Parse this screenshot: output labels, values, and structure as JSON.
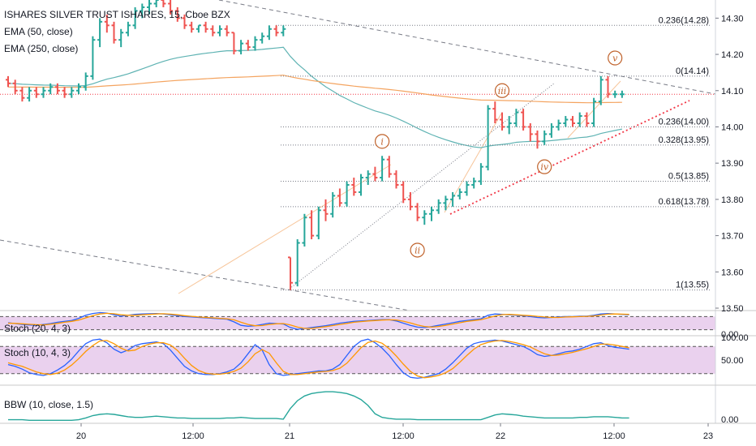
{
  "legend": {
    "symbol": "ISHARES SILVER TRUST ISHARES, 15, Cboe BZX",
    "ema50": "EMA (50, close)",
    "ema250": "EMA (250, close)",
    "stoch1": "Stoch (20, 4, 3)",
    "stoch2": "Stoch (10, 4, 3)",
    "bbw": "BBW (10, close, 1.5)"
  },
  "colors": {
    "bull": "#26a69a",
    "bear": "#ef5350",
    "ema50": "#5fb3b3",
    "ema250": "#f4a460",
    "stoch_k": "#2962ff",
    "stoch_d": "#ff9800",
    "stoch_bg": "#e1bee7",
    "bbw": "#26a69a",
    "wave": "#c0622b",
    "fib": "#787b86",
    "price_line": "#f23645",
    "trend": "#787b86"
  },
  "chart_data": [
    {
      "type": "line",
      "panel": "price",
      "price_axis_ticks": [
        "14.30",
        "14.20",
        "14.10",
        "14.00",
        "13.90",
        "13.80",
        "13.70",
        "13.60",
        "13.50"
      ],
      "ylim": [
        13.5,
        14.35
      ],
      "time_axis_labels": [
        "20",
        "12:00",
        "21",
        "12:00",
        "22",
        "12:00",
        "23"
      ],
      "current_price_line": 14.09,
      "fib_levels": [
        {
          "label": "0.236(14.28)",
          "value": 14.28
        },
        {
          "label": "0(14.14)",
          "value": 14.14
        },
        {
          "label": "0.236(14.00)",
          "value": 14.0
        },
        {
          "label": "0.328(13.95)",
          "value": 13.95
        },
        {
          "label": "0.5(13.85)",
          "value": 13.85
        },
        {
          "label": "0.618(13.78)",
          "value": 13.78
        },
        {
          "label": "1(13.55)",
          "value": 13.55
        }
      ],
      "wave_labels": [
        {
          "label": "i",
          "price": 13.96
        },
        {
          "label": "ii",
          "price": 13.66
        },
        {
          "label": "iii",
          "price": 14.1
        },
        {
          "label": "iv",
          "price": 13.89
        },
        {
          "label": "v",
          "price": 14.19
        }
      ],
      "ohlc": [
        [
          14.13,
          14.14,
          14.11,
          14.12
        ],
        [
          14.12,
          14.13,
          14.09,
          14.1
        ],
        [
          14.1,
          14.11,
          14.07,
          14.08
        ],
        [
          14.08,
          14.11,
          14.07,
          14.1
        ],
        [
          14.1,
          14.11,
          14.08,
          14.09
        ],
        [
          14.09,
          14.11,
          14.08,
          14.1
        ],
        [
          14.1,
          14.12,
          14.09,
          14.11
        ],
        [
          14.11,
          14.12,
          14.09,
          14.1
        ],
        [
          14.1,
          14.11,
          14.08,
          14.09
        ],
        [
          14.09,
          14.11,
          14.08,
          14.1
        ],
        [
          14.1,
          14.12,
          14.09,
          14.11
        ],
        [
          14.11,
          14.15,
          14.1,
          14.14
        ],
        [
          14.14,
          14.25,
          14.13,
          14.24
        ],
        [
          14.24,
          14.3,
          14.22,
          14.29
        ],
        [
          14.29,
          14.31,
          14.26,
          14.28
        ],
        [
          14.28,
          14.29,
          14.23,
          14.24
        ],
        [
          14.24,
          14.27,
          14.22,
          14.26
        ],
        [
          14.26,
          14.29,
          14.25,
          14.28
        ],
        [
          14.28,
          14.33,
          14.27,
          14.32
        ],
        [
          14.32,
          14.34,
          14.3,
          14.33
        ],
        [
          14.33,
          14.35,
          14.31,
          14.34
        ],
        [
          14.34,
          14.36,
          14.33,
          14.35
        ],
        [
          14.35,
          14.36,
          14.33,
          14.34
        ],
        [
          14.34,
          14.35,
          14.31,
          14.32
        ],
        [
          14.32,
          14.33,
          14.29,
          14.3
        ],
        [
          14.3,
          14.31,
          14.27,
          14.28
        ],
        [
          14.28,
          14.29,
          14.26,
          14.27
        ],
        [
          14.27,
          14.28,
          14.26,
          14.28
        ],
        [
          14.28,
          14.29,
          14.26,
          14.27
        ],
        [
          14.27,
          14.28,
          14.25,
          14.26
        ],
        [
          14.26,
          14.28,
          14.25,
          14.27
        ],
        [
          14.27,
          14.28,
          14.25,
          14.26
        ],
        [
          14.26,
          14.26,
          14.2,
          14.21
        ],
        [
          14.21,
          14.24,
          14.2,
          14.23
        ],
        [
          14.23,
          14.24,
          14.21,
          14.22
        ],
        [
          14.22,
          14.25,
          14.21,
          14.24
        ],
        [
          14.24,
          14.26,
          14.23,
          14.25
        ],
        [
          14.25,
          14.28,
          14.24,
          14.27
        ],
        [
          14.27,
          14.28,
          14.25,
          14.26
        ],
        [
          14.26,
          14.28,
          14.25,
          14.27
        ],
        [
          13.64,
          13.64,
          13.55,
          13.57
        ],
        [
          13.57,
          13.69,
          13.56,
          13.68
        ],
        [
          13.68,
          13.76,
          13.67,
          13.75
        ],
        [
          13.75,
          13.77,
          13.69,
          13.7
        ],
        [
          13.7,
          13.78,
          13.69,
          13.77
        ],
        [
          13.77,
          13.8,
          13.74,
          13.76
        ],
        [
          13.76,
          13.82,
          13.75,
          13.81
        ],
        [
          13.81,
          13.83,
          13.78,
          13.79
        ],
        [
          13.79,
          13.85,
          13.78,
          13.84
        ],
        [
          13.84,
          13.86,
          13.81,
          13.82
        ],
        [
          13.82,
          13.87,
          13.81,
          13.86
        ],
        [
          13.86,
          13.88,
          13.84,
          13.87
        ],
        [
          13.87,
          13.89,
          13.85,
          13.86
        ],
        [
          13.86,
          13.92,
          13.85,
          13.91
        ],
        [
          13.91,
          13.92,
          13.86,
          13.87
        ],
        [
          13.87,
          13.88,
          13.83,
          13.84
        ],
        [
          13.84,
          13.85,
          13.79,
          13.8
        ],
        [
          13.8,
          13.82,
          13.77,
          13.78
        ],
        [
          13.78,
          13.79,
          13.74,
          13.75
        ],
        [
          13.75,
          13.77,
          13.73,
          13.76
        ],
        [
          13.76,
          13.78,
          13.74,
          13.77
        ],
        [
          13.77,
          13.8,
          13.76,
          13.79
        ],
        [
          13.79,
          13.81,
          13.77,
          13.8
        ],
        [
          13.8,
          13.82,
          13.78,
          13.81
        ],
        [
          13.81,
          13.83,
          13.8,
          13.82
        ],
        [
          13.82,
          13.85,
          13.81,
          13.84
        ],
        [
          13.84,
          13.86,
          13.83,
          13.85
        ],
        [
          13.85,
          13.9,
          13.84,
          13.89
        ],
        [
          13.89,
          14.06,
          13.88,
          14.05
        ],
        [
          14.05,
          14.07,
          14.01,
          14.02
        ],
        [
          14.02,
          14.04,
          13.99,
          14.0
        ],
        [
          14.0,
          14.03,
          13.98,
          14.01
        ],
        [
          14.01,
          14.05,
          14.0,
          14.04
        ],
        [
          14.04,
          14.05,
          13.99,
          14.0
        ],
        [
          14.0,
          14.01,
          13.96,
          13.98
        ],
        [
          13.98,
          13.99,
          13.94,
          13.96
        ],
        [
          13.96,
          13.99,
          13.95,
          13.98
        ],
        [
          13.98,
          14.01,
          13.97,
          14.0
        ],
        [
          14.0,
          14.02,
          13.99,
          14.01
        ],
        [
          14.01,
          14.03,
          14.0,
          14.02
        ],
        [
          14.02,
          14.03,
          14.0,
          14.01
        ],
        [
          14.01,
          14.04,
          14.0,
          14.03
        ],
        [
          14.03,
          14.04,
          14.0,
          14.01
        ],
        [
          14.01,
          14.08,
          14.0,
          14.07
        ],
        [
          14.07,
          14.14,
          14.06,
          14.13
        ],
        [
          14.13,
          14.14,
          14.08,
          14.09
        ],
        [
          14.09,
          14.1,
          14.08,
          14.09
        ],
        [
          14.09,
          14.1,
          14.08,
          14.09
        ]
      ]
    },
    {
      "type": "line",
      "panel": "stoch_20_4_3",
      "axis_ticks": [
        "0.00"
      ],
      "ylim": [
        0,
        100
      ],
      "bands": [
        80,
        20
      ],
      "series": [
        {
          "name": "K",
          "values": [
            52,
            48,
            44,
            42,
            40,
            44,
            48,
            54,
            58,
            62,
            72,
            86,
            94,
            98,
            96,
            88,
            82,
            86,
            90,
            92,
            93,
            94,
            92,
            88,
            84,
            80,
            78,
            76,
            74,
            72,
            70,
            68,
            56,
            40,
            36,
            38,
            44,
            50,
            48,
            46,
            30,
            22,
            26,
            30,
            34,
            38,
            44,
            50,
            54,
            58,
            60,
            62,
            64,
            66,
            66,
            60,
            50,
            40,
            32,
            30,
            34,
            40,
            46,
            52,
            58,
            62,
            66,
            70,
            86,
            92,
            90,
            88,
            86,
            84,
            80,
            76,
            74,
            76,
            78,
            80,
            80,
            82,
            82,
            86,
            92,
            94,
            92,
            90,
            88
          ]
        },
        {
          "name": "D",
          "values": [
            50,
            49,
            47,
            45,
            43,
            42,
            45,
            49,
            54,
            58,
            64,
            74,
            84,
            92,
            95,
            93,
            88,
            86,
            86,
            88,
            90,
            92,
            93,
            91,
            88,
            84,
            81,
            78,
            76,
            74,
            72,
            70,
            65,
            54,
            44,
            38,
            39,
            44,
            47,
            48,
            42,
            32,
            26,
            26,
            30,
            34,
            39,
            44,
            49,
            54,
            57,
            60,
            62,
            64,
            65,
            64,
            59,
            51,
            42,
            35,
            32,
            35,
            40,
            46,
            52,
            58,
            62,
            66,
            74,
            83,
            89,
            90,
            88,
            86,
            84,
            81,
            78,
            76,
            76,
            78,
            79,
            80,
            81,
            83,
            87,
            91,
            92,
            91,
            90
          ]
        }
      ]
    },
    {
      "type": "line",
      "panel": "stoch_10_4_3",
      "axis_ticks": [
        "100.00",
        "50.00"
      ],
      "ylim": [
        0,
        100
      ],
      "bands": [
        80,
        20
      ],
      "series": [
        {
          "name": "K",
          "values": [
            40,
            36,
            30,
            22,
            18,
            16,
            20,
            28,
            38,
            52,
            70,
            86,
            94,
            96,
            88,
            74,
            66,
            72,
            82,
            86,
            88,
            90,
            86,
            72,
            54,
            36,
            26,
            20,
            18,
            18,
            20,
            24,
            30,
            44,
            64,
            84,
            72,
            40,
            20,
            16,
            18,
            20,
            22,
            24,
            26,
            26,
            30,
            40,
            60,
            80,
            92,
            96,
            88,
            76,
            60,
            40,
            22,
            12,
            10,
            12,
            16,
            20,
            30,
            44,
            60,
            76,
            86,
            90,
            92,
            94,
            92,
            88,
            84,
            80,
            72,
            62,
            58,
            60,
            64,
            68,
            70,
            74,
            80,
            86,
            88,
            82,
            78,
            76,
            74
          ]
        },
        {
          "name": "D",
          "values": [
            44,
            40,
            36,
            30,
            24,
            20,
            18,
            21,
            28,
            39,
            53,
            69,
            82,
            92,
            93,
            86,
            76,
            70,
            72,
            80,
            85,
            88,
            88,
            83,
            71,
            54,
            38,
            27,
            21,
            19,
            19,
            21,
            25,
            32,
            46,
            64,
            73,
            65,
            44,
            25,
            18,
            18,
            20,
            22,
            24,
            25,
            27,
            32,
            43,
            60,
            77,
            89,
            92,
            87,
            75,
            59,
            41,
            25,
            15,
            11,
            13,
            16,
            22,
            31,
            45,
            60,
            74,
            84,
            89,
            92,
            93,
            91,
            88,
            84,
            79,
            71,
            64,
            60,
            61,
            64,
            67,
            71,
            75,
            80,
            85,
            85,
            83,
            80,
            77
          ]
        }
      ]
    },
    {
      "type": "area",
      "panel": "bbw_10_close_1_5",
      "axis_ticks": [
        "0.00"
      ],
      "ylim": [
        0,
        0.06
      ],
      "values": [
        0.006,
        0.006,
        0.006,
        0.005,
        0.005,
        0.005,
        0.005,
        0.005,
        0.005,
        0.005,
        0.006,
        0.009,
        0.013,
        0.015,
        0.016,
        0.015,
        0.013,
        0.011,
        0.01,
        0.01,
        0.011,
        0.012,
        0.011,
        0.01,
        0.009,
        0.009,
        0.008,
        0.008,
        0.008,
        0.008,
        0.008,
        0.009,
        0.009,
        0.01,
        0.009,
        0.008,
        0.008,
        0.008,
        0.008,
        0.007,
        0.025,
        0.038,
        0.046,
        0.05,
        0.052,
        0.053,
        0.053,
        0.052,
        0.05,
        0.046,
        0.04,
        0.03,
        0.016,
        0.01,
        0.008,
        0.007,
        0.007,
        0.007,
        0.006,
        0.006,
        0.006,
        0.006,
        0.006,
        0.006,
        0.006,
        0.006,
        0.006,
        0.006,
        0.01,
        0.014,
        0.016,
        0.015,
        0.014,
        0.012,
        0.011,
        0.01,
        0.009,
        0.009,
        0.009,
        0.009,
        0.009,
        0.01,
        0.01,
        0.011,
        0.011,
        0.011,
        0.01,
        0.009,
        0.009
      ]
    }
  ]
}
